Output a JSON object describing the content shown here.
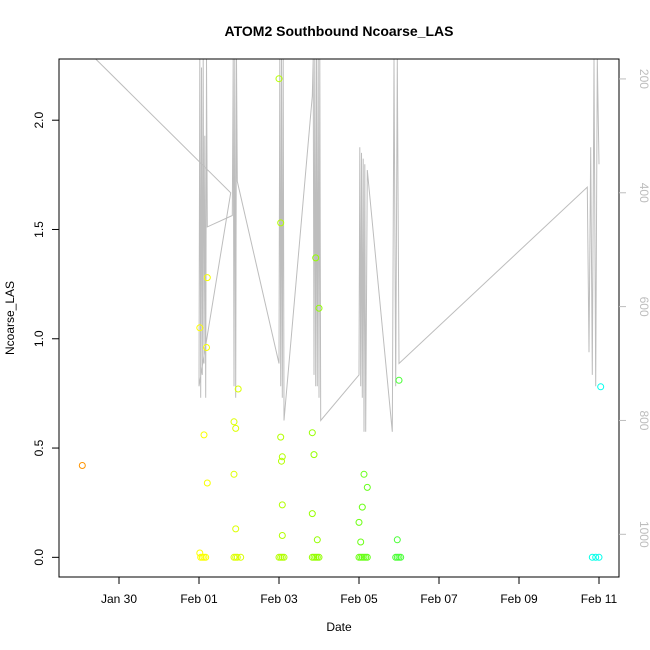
{
  "chart_data": {
    "type": "scatter",
    "title": "ATOM2 Southbound Ncoarse_LAS",
    "xlabel": "Date",
    "ylabel": "Ncoarse_LAS",
    "xlim": [
      "2017-01-28T12:00",
      "2017-02-11T12:00"
    ],
    "ylim": [
      -0.09,
      2.28
    ],
    "y_ticks": [
      0.0,
      0.5,
      1.0,
      1.5,
      2.0
    ],
    "y_tick_labels": [
      "0.0",
      "0.5",
      "1.0",
      "1.5",
      "2.0"
    ],
    "x_ticks": [
      "2017-01-30",
      "2017-02-01",
      "2017-02-03",
      "2017-02-05",
      "2017-02-07",
      "2017-02-09",
      "2017-02-11"
    ],
    "x_tick_labels": [
      "Jan 30",
      "Feb 01",
      "Feb 03",
      "Feb 05",
      "Feb 07",
      "Feb 09",
      "Feb 11"
    ],
    "y2_ticks": [
      200,
      400,
      600,
      800,
      1000
    ],
    "y2_tick_labels": [
      "200",
      "400",
      "600",
      "800",
      "1000"
    ],
    "y2lim": [
      1075,
      165
    ],
    "y2_reversed": true,
    "grid": false,
    "legend": "none",
    "point_colors_by_time": [
      "#FF7F00",
      "#FFFF00",
      "#7FFF00",
      "#00FF7F",
      "#00FFFF"
    ],
    "line_color": "#bdbdbd",
    "series": [
      {
        "marker": "open-circle",
        "color_scale": "time",
        "points": [
          [
            "2017-01-29T02:00",
            0.42
          ],
          [
            "2017-02-01T00:30",
            0.02
          ],
          [
            "2017-02-01T01:00",
            0.0
          ],
          [
            "2017-02-01T02:00",
            0.0
          ],
          [
            "2017-02-01T03:00",
            0.0
          ],
          [
            "2017-02-01T04:00",
            0.0
          ],
          [
            "2017-02-01T00:30",
            1.05
          ],
          [
            "2017-02-01T03:00",
            0.56
          ],
          [
            "2017-02-01T04:30",
            0.96
          ],
          [
            "2017-02-01T05:00",
            1.28
          ],
          [
            "2017-02-01T05:00",
            0.34
          ],
          [
            "2017-02-01T21:00",
            0.0
          ],
          [
            "2017-02-01T22:00",
            0.0
          ],
          [
            "2017-02-01T23:00",
            0.0
          ],
          [
            "2017-02-02T01:00",
            0.0
          ],
          [
            "2017-02-01T21:00",
            0.62
          ],
          [
            "2017-02-01T22:00",
            0.59
          ],
          [
            "2017-02-01T21:00",
            0.38
          ],
          [
            "2017-02-01T22:00",
            0.13
          ],
          [
            "2017-02-01T23:30",
            0.77
          ],
          [
            "2017-02-03T00:00",
            0.0
          ],
          [
            "2017-02-03T01:00",
            0.0
          ],
          [
            "2017-02-03T02:00",
            0.0
          ],
          [
            "2017-02-03T03:00",
            0.0
          ],
          [
            "2017-02-03T00:00",
            2.19
          ],
          [
            "2017-02-03T01:00",
            1.53
          ],
          [
            "2017-02-03T01:00",
            0.55
          ],
          [
            "2017-02-03T02:00",
            0.46
          ],
          [
            "2017-02-03T01:30",
            0.44
          ],
          [
            "2017-02-03T02:00",
            0.24
          ],
          [
            "2017-02-03T02:00",
            0.1
          ],
          [
            "2017-02-03T20:00",
            0.0
          ],
          [
            "2017-02-03T21:00",
            0.0
          ],
          [
            "2017-02-03T22:00",
            0.0
          ],
          [
            "2017-02-03T23:00",
            0.0
          ],
          [
            "2017-02-04T00:00",
            0.0
          ],
          [
            "2017-02-03T20:00",
            0.57
          ],
          [
            "2017-02-03T21:00",
            0.47
          ],
          [
            "2017-02-03T20:00",
            0.2
          ],
          [
            "2017-02-03T22:00",
            1.37
          ],
          [
            "2017-02-04T00:00",
            1.14
          ],
          [
            "2017-02-03T23:00",
            0.08
          ],
          [
            "2017-02-05T00:00",
            0.0
          ],
          [
            "2017-02-05T01:00",
            0.0
          ],
          [
            "2017-02-05T02:00",
            0.0
          ],
          [
            "2017-02-05T03:00",
            0.0
          ],
          [
            "2017-02-05T04:00",
            0.0
          ],
          [
            "2017-02-05T05:00",
            0.0
          ],
          [
            "2017-02-05T00:00",
            0.16
          ],
          [
            "2017-02-05T01:00",
            0.07
          ],
          [
            "2017-02-05T02:00",
            0.23
          ],
          [
            "2017-02-05T03:00",
            0.38
          ],
          [
            "2017-02-05T05:00",
            0.32
          ],
          [
            "2017-02-05T22:00",
            0.0
          ],
          [
            "2017-02-05T23:00",
            0.0
          ],
          [
            "2017-02-06T00:00",
            0.0
          ],
          [
            "2017-02-06T01:00",
            0.0
          ],
          [
            "2017-02-05T23:00",
            0.08
          ],
          [
            "2017-02-06T00:00",
            0.81
          ],
          [
            "2017-02-10T20:00",
            0.0
          ],
          [
            "2017-02-10T22:00",
            0.0
          ],
          [
            "2017-02-11T00:00",
            0.0
          ],
          [
            "2017-02-11T01:00",
            0.78
          ]
        ]
      },
      {
        "name_axis": "y2",
        "type": "line",
        "color": "#bdbdbd",
        "points": [
          [
            "2017-01-29T10:00",
            165
          ],
          [
            "2017-02-01T19:00",
            400
          ],
          [
            "2017-02-01T00:00",
            740
          ],
          [
            "2017-02-01T00:30",
            165
          ],
          [
            "2017-02-01T01:00",
            760
          ],
          [
            "2017-02-01T01:30",
            180
          ],
          [
            "2017-02-01T02:00",
            720
          ],
          [
            "2017-02-01T02:30",
            165
          ],
          [
            "2017-02-01T03:00",
            700
          ],
          [
            "2017-02-01T03:30",
            300
          ],
          [
            "2017-02-01T04:00",
            760
          ],
          [
            "2017-02-01T04:30",
            165
          ],
          [
            "2017-02-01T05:00",
            460
          ],
          [
            "2017-02-01T20:00",
            440
          ],
          [
            "2017-02-01T20:30",
            165
          ],
          [
            "2017-02-01T21:00",
            740
          ],
          [
            "2017-02-01T21:30",
            165
          ],
          [
            "2017-02-01T22:00",
            760
          ],
          [
            "2017-02-01T22:30",
            165
          ],
          [
            "2017-02-01T23:00",
            380
          ],
          [
            "2017-02-03T00:00",
            700
          ],
          [
            "2017-02-03T00:30",
            165
          ],
          [
            "2017-02-03T01:00",
            740
          ],
          [
            "2017-02-03T01:30",
            165
          ],
          [
            "2017-02-03T02:00",
            760
          ],
          [
            "2017-02-03T02:30",
            165
          ],
          [
            "2017-02-03T03:00",
            800
          ],
          [
            "2017-02-03T20:00",
            230
          ],
          [
            "2017-02-03T20:30",
            165
          ],
          [
            "2017-02-03T21:00",
            720
          ],
          [
            "2017-02-03T21:30",
            165
          ],
          [
            "2017-02-03T22:00",
            740
          ],
          [
            "2017-02-03T22:30",
            165
          ],
          [
            "2017-02-03T23:00",
            740
          ],
          [
            "2017-02-03T23:30",
            165
          ],
          [
            "2017-02-04T00:00",
            760
          ],
          [
            "2017-02-04T00:30",
            165
          ],
          [
            "2017-02-04T01:00",
            800
          ],
          [
            "2017-02-05T00:00",
            720
          ],
          [
            "2017-02-05T00:30",
            320
          ],
          [
            "2017-02-05T01:00",
            740
          ],
          [
            "2017-02-05T01:30",
            330
          ],
          [
            "2017-02-05T02:00",
            760
          ],
          [
            "2017-02-05T02:30",
            340
          ],
          [
            "2017-02-05T03:00",
            820
          ],
          [
            "2017-02-05T03:30",
            350
          ],
          [
            "2017-02-05T04:00",
            820
          ],
          [
            "2017-02-05T05:00",
            360
          ],
          [
            "2017-02-05T20:00",
            820
          ],
          [
            "2017-02-05T21:00",
            165
          ],
          [
            "2017-02-05T22:00",
            740
          ],
          [
            "2017-02-05T23:00",
            165
          ],
          [
            "2017-02-06T00:00",
            700
          ],
          [
            "2017-02-10T17:00",
            390
          ],
          [
            "2017-02-10T18:00",
            680
          ],
          [
            "2017-02-10T19:00",
            320
          ],
          [
            "2017-02-10T20:00",
            720
          ],
          [
            "2017-02-10T21:00",
            165
          ],
          [
            "2017-02-10T22:00",
            740
          ],
          [
            "2017-02-10T23:00",
            165
          ],
          [
            "2017-02-11T00:00",
            350
          ]
        ]
      }
    ]
  }
}
